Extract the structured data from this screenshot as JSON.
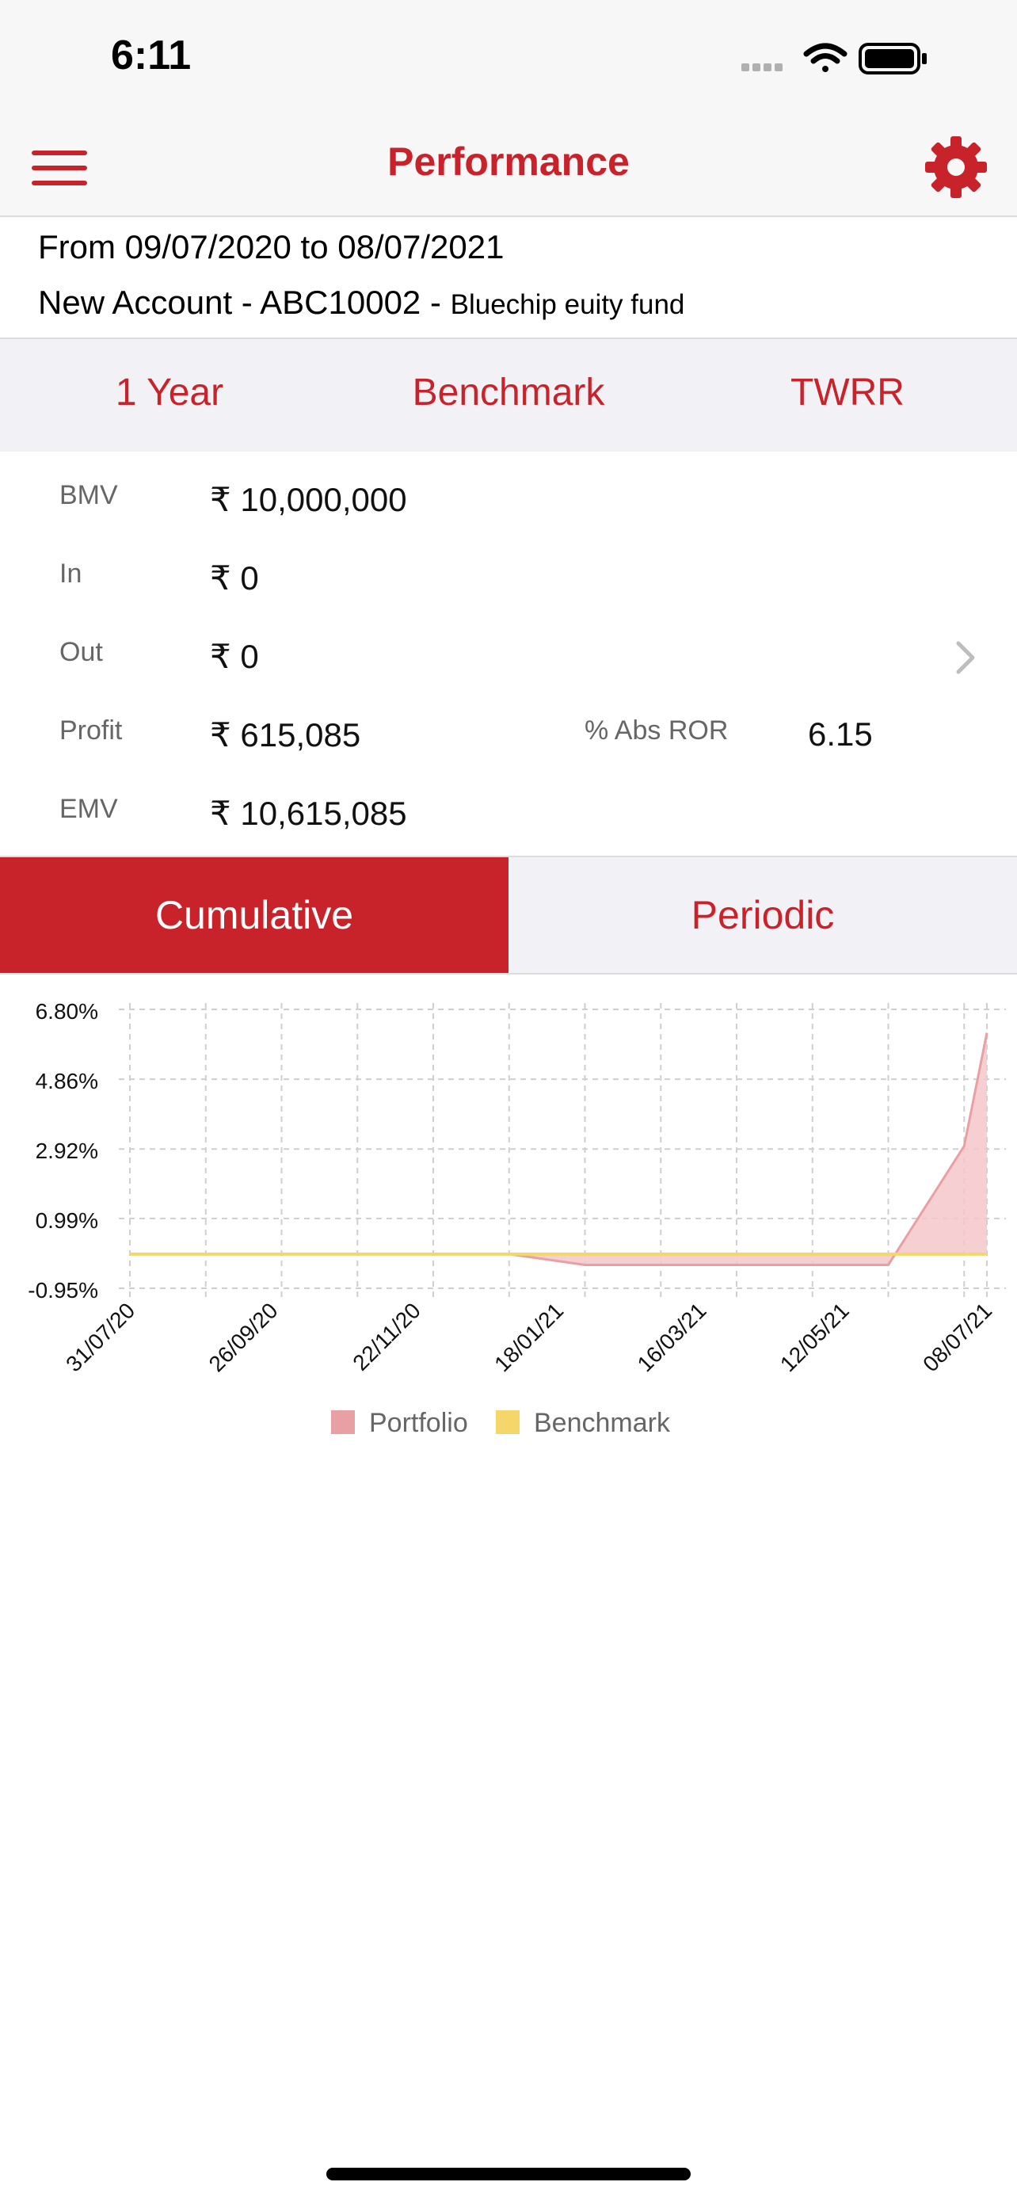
{
  "status_bar": {
    "time": "6:11"
  },
  "nav": {
    "title": "Performance"
  },
  "info": {
    "date_range": "From 09/07/2020 to 08/07/2021",
    "account": "New Account - ABC10002 - ",
    "fund": "Bluechip euity fund"
  },
  "period_bar": {
    "period": "1 Year",
    "benchmark": "Benchmark",
    "method": "TWRR"
  },
  "summary": {
    "bmv_label": "BMV",
    "bmv_value": "₹ 10,000,000",
    "in_label": "In",
    "in_value": "₹ 0",
    "out_label": "Out",
    "out_value": "₹ 0",
    "profit_label": "Profit",
    "profit_value": "₹ 615,085",
    "ror_label": "% Abs ROR",
    "ror_value": "6.15",
    "emv_label": "EMV",
    "emv_value": "₹ 10,615,085"
  },
  "segments": {
    "cumulative": "Cumulative",
    "periodic": "Periodic"
  },
  "colors": {
    "accent": "#c8232b",
    "portfolio_fill": "#f4c7ca",
    "portfolio_line": "#e8a0a5",
    "benchmark_line": "#f5d66a"
  },
  "chart_data": {
    "type": "area",
    "y_ticks": [
      "6.80%",
      "4.86%",
      "2.92%",
      "0.99%",
      "-0.95%"
    ],
    "y_tick_values": [
      6.8,
      4.86,
      2.92,
      0.99,
      -0.95
    ],
    "ylim": [
      -0.95,
      6.8
    ],
    "x_tick_labels": [
      "31/07/20",
      "26/09/20",
      "22/11/20",
      "18/01/21",
      "16/03/21",
      "12/05/21",
      "08/07/21"
    ],
    "x_gridlines": 12,
    "grid": true,
    "legend_position": "bottom",
    "series": [
      {
        "name": "Portfolio",
        "x": [
          0,
          1,
          2,
          3,
          4,
          5,
          6,
          7,
          8,
          9,
          10,
          11,
          11.3
        ],
        "values": [
          0,
          0,
          0,
          0,
          0,
          0,
          -0.3,
          -0.3,
          -0.3,
          -0.3,
          -0.3,
          3.0,
          6.15
        ]
      },
      {
        "name": "Benchmark",
        "x": [
          0,
          11.3
        ],
        "values": [
          0,
          0
        ]
      }
    ]
  }
}
